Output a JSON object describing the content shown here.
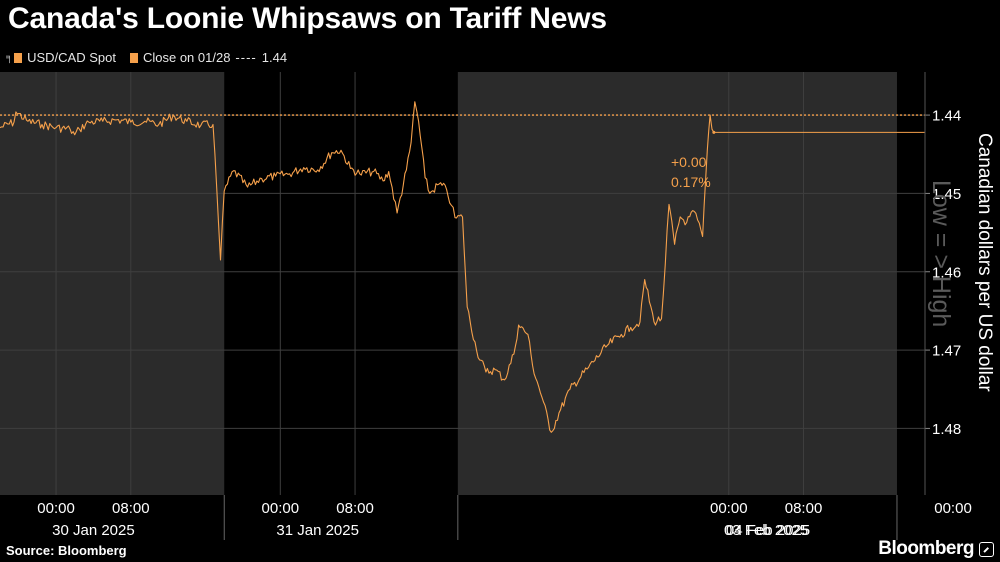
{
  "title": "Canada's Loonie Whipsaws on Tariff News",
  "legend": {
    "series_label": "USD/CAD Spot",
    "close_label": "Close on 01/28",
    "close_value": "1.44",
    "dash": "----"
  },
  "annotations": {
    "change_abs": "+0.00",
    "change_pct": "0.17%",
    "watermark": "Low = > High"
  },
  "source": "Source: Bloomberg",
  "brand": "Bloomberg",
  "colors": {
    "line": "#f5a04b",
    "shade": "#2b2b2b",
    "grid": "#3f3f3f",
    "text": "#ffffff"
  },
  "chart_data": {
    "type": "line",
    "title": "Canada's Loonie Whipsaws on Tariff News",
    "ylabel": "Canadian dollars per US dollar",
    "y_inverted": true,
    "ylim": [
      1.4345,
      1.4885
    ],
    "yticks": [
      1.44,
      1.45,
      1.46,
      1.47,
      1.48
    ],
    "ytick_labels": [
      "1.44",
      "1.45",
      "1.46",
      "1.47",
      "1.48"
    ],
    "xlim": [
      -6,
      93
    ],
    "xtick_labels": [
      {
        "t": 0,
        "label": "00:00"
      },
      {
        "t": 8,
        "label": "08:00"
      },
      {
        "t": 24,
        "label": "00:00"
      },
      {
        "t": 32,
        "label": "08:00"
      },
      {
        "t": 72,
        "label": "00:00"
      },
      {
        "t": 80,
        "label": "08:00"
      },
      {
        "t": 96,
        "label": "00:00"
      },
      {
        "t": 104,
        "label": "08:00"
      }
    ],
    "days": [
      {
        "label": "30 Jan 2025",
        "start": -6,
        "end": 18,
        "shaded": true
      },
      {
        "label": "31 Jan 2025",
        "start": 18,
        "end": 43,
        "shaded": false
      },
      {
        "label": "03 Feb 2025",
        "start": 43,
        "end": 90,
        "shaded": true
      },
      {
        "label": "04 Feb 2025",
        "start": 90,
        "end": 93,
        "shaded": false
      }
    ],
    "reference_line": {
      "name": "Close on 01/28",
      "y": 1.44
    },
    "last_value": 1.4422,
    "series": [
      {
        "name": "USD/CAD Spot",
        "points": [
          [
            -6.0,
            1.4416
          ],
          [
            -4.5,
            1.4409
          ],
          [
            -4.3,
            1.4396
          ],
          [
            -3.0,
            1.4408
          ],
          [
            -1.5,
            1.4412
          ],
          [
            0.0,
            1.4416
          ],
          [
            1.5,
            1.4418
          ],
          [
            2.0,
            1.4425
          ],
          [
            2.5,
            1.4418
          ],
          [
            3.5,
            1.4409
          ],
          [
            5.0,
            1.4408
          ],
          [
            6.5,
            1.4406
          ],
          [
            8.0,
            1.4409
          ],
          [
            9.5,
            1.4408
          ],
          [
            11.0,
            1.4412
          ],
          [
            12.5,
            1.4401
          ],
          [
            14.0,
            1.4408
          ],
          [
            15.5,
            1.4413
          ],
          [
            16.8,
            1.4412
          ],
          [
            17.2,
            1.4495
          ],
          [
            17.6,
            1.4585
          ],
          [
            18.0,
            1.4497
          ],
          [
            19.0,
            1.4471
          ],
          [
            20.5,
            1.4492
          ],
          [
            22.0,
            1.4481
          ],
          [
            23.5,
            1.4478
          ],
          [
            25.0,
            1.4475
          ],
          [
            26.5,
            1.4467
          ],
          [
            28.0,
            1.447
          ],
          [
            29.5,
            1.4448
          ],
          [
            30.5,
            1.4445
          ],
          [
            31.5,
            1.4468
          ],
          [
            32.5,
            1.4475
          ],
          [
            34.0,
            1.4472
          ],
          [
            35.0,
            1.4484
          ],
          [
            35.6,
            1.4472
          ],
          [
            36.5,
            1.4525
          ],
          [
            37.5,
            1.447
          ],
          [
            38.0,
            1.4435
          ],
          [
            38.4,
            1.4383
          ],
          [
            38.8,
            1.4408
          ],
          [
            39.5,
            1.448
          ],
          [
            40.0,
            1.45
          ],
          [
            41.0,
            1.4488
          ],
          [
            41.8,
            1.4495
          ],
          [
            42.3,
            1.4515
          ],
          [
            42.7,
            1.4531
          ],
          [
            43.5,
            1.453
          ],
          [
            44.0,
            1.4645
          ],
          [
            45.0,
            1.47
          ],
          [
            46.0,
            1.4728
          ],
          [
            47.0,
            1.4725
          ],
          [
            48.0,
            1.4738
          ],
          [
            49.0,
            1.4705
          ],
          [
            49.5,
            1.4668
          ],
          [
            50.5,
            1.468
          ],
          [
            51.0,
            1.472
          ],
          [
            52.0,
            1.476
          ],
          [
            53.0,
            1.4805
          ],
          [
            54.0,
            1.4776
          ],
          [
            55.0,
            1.475
          ],
          [
            57.0,
            1.4722
          ],
          [
            59.0,
            1.4694
          ],
          [
            60.5,
            1.468
          ],
          [
            61.5,
            1.4671
          ],
          [
            62.5,
            1.4664
          ],
          [
            63.0,
            1.461
          ],
          [
            64.0,
            1.4664
          ],
          [
            64.8,
            1.466
          ],
          [
            65.2,
            1.459
          ],
          [
            65.6,
            1.4514
          ],
          [
            66.2,
            1.4565
          ],
          [
            66.8,
            1.453
          ],
          [
            67.5,
            1.4537
          ],
          [
            68.3,
            1.4523
          ],
          [
            69.2,
            1.4555
          ],
          [
            69.7,
            1.4445
          ],
          [
            70.0,
            1.44
          ],
          [
            70.2,
            1.4418
          ],
          [
            70.4,
            1.4422
          ],
          [
            93.0,
            1.4422
          ]
        ]
      }
    ]
  }
}
